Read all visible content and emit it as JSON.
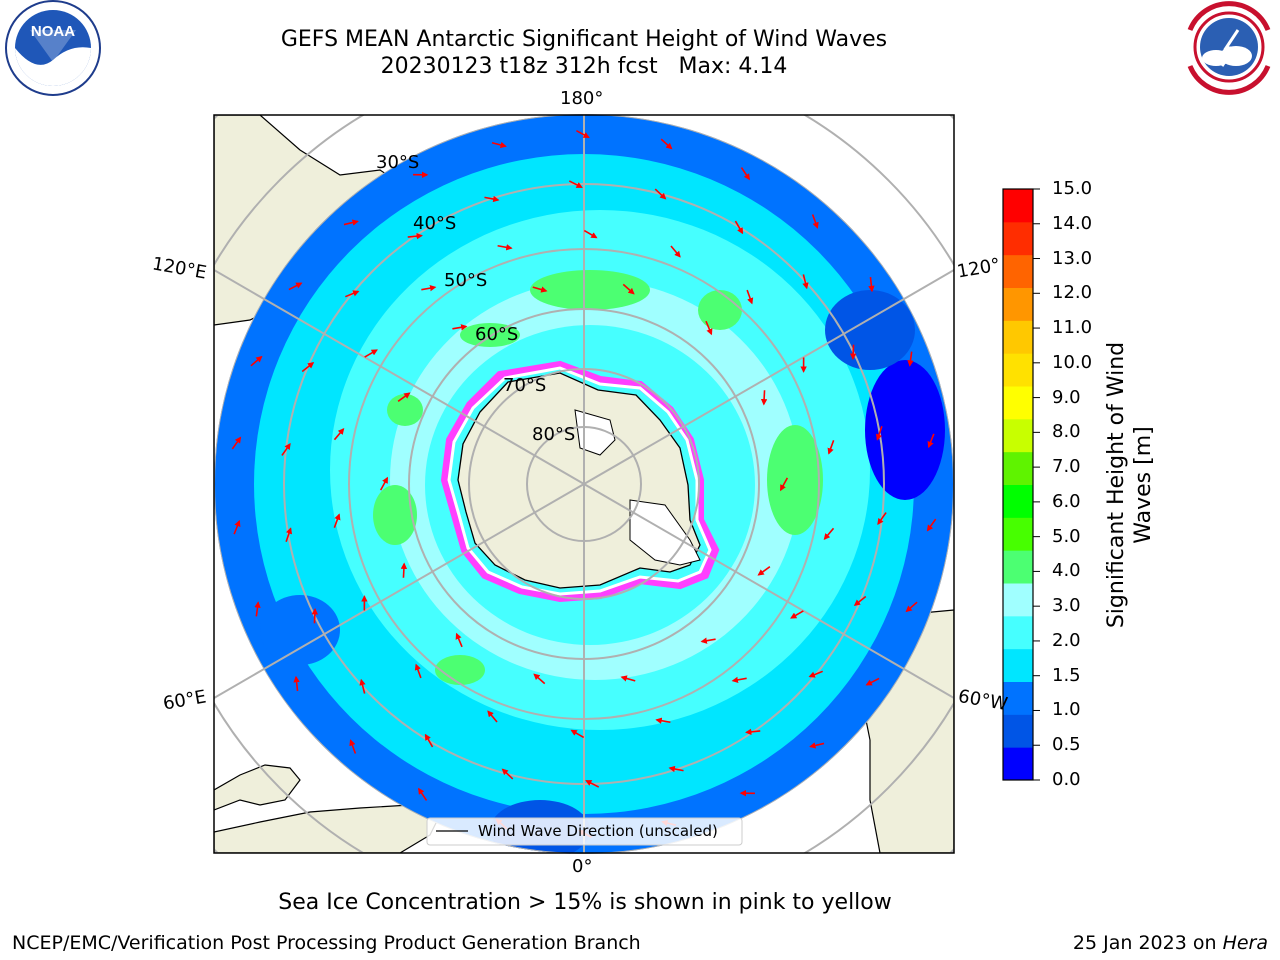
{
  "header": {
    "title_line1": "GEFS MEAN Antarctic Significant Height of Wind Waves",
    "title_line2": "20230123 t18z 312h fcst   Max: 4.14"
  },
  "logos": {
    "noaa": {
      "text": "NOAA",
      "ring_text": "NATIONAL OCEANIC AND ATMOSPHERIC ADMINISTRATION · U.S. DEPARTMENT OF COMMERCE"
    },
    "nws": {
      "ring_text": "NATIONAL WEATHER SERVICE"
    }
  },
  "map": {
    "projection": "south-polar stereographic",
    "longitude_labels": {
      "top": "180°",
      "bottom": "0°",
      "upper_left": "120°E",
      "upper_right": "120°",
      "lower_left": "60°E",
      "lower_right": "60°W"
    },
    "latitude_labels": [
      "30°S",
      "40°S",
      "50°S",
      "60°S",
      "70°S",
      "80°S"
    ],
    "legend_label": "Wind Wave Direction (unscaled)",
    "arrow_color": "#ff0000",
    "land_color": "#efefdb",
    "sea_ice_colors": [
      "#ff3fff",
      "#ffffff",
      "#ffff00"
    ]
  },
  "colorbar": {
    "label_line1": "Significant Height of Wind",
    "label_line2": "Waves [m]",
    "ticks": [
      "0.0",
      "0.5",
      "1.0",
      "1.5",
      "2.0",
      "3.0",
      "4.0",
      "5.0",
      "6.0",
      "7.0",
      "8.0",
      "9.0",
      "10.0",
      "11.0",
      "12.0",
      "13.0",
      "14.0",
      "15.0"
    ],
    "colors": [
      "#0000ff",
      "#0055e6",
      "#0073ff",
      "#00e6ff",
      "#46ffff",
      "#a0ffff",
      "#4cff72",
      "#47ff00",
      "#00ff00",
      "#5ff300",
      "#c8ff00",
      "#ffff00",
      "#ffe100",
      "#ffc800",
      "#ff9600",
      "#ff6400",
      "#ff2d00",
      "#ff0000"
    ]
  },
  "footer": {
    "note": "Sea Ice Concentration > 15% is shown in pink to yellow",
    "left": "NCEP/EMC/Verification Post Processing Product Generation Branch",
    "right_date": "25 Jan 2023 on ",
    "right_host": "Hera"
  }
}
